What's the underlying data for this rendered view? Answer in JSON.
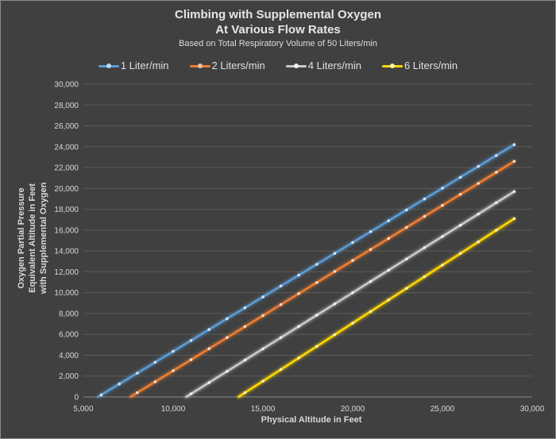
{
  "chart_data": {
    "type": "line",
    "title": "Climbing with Supplemental Oxygen",
    "title_line2": "At Various Flow Rates",
    "subtitle": "Based on Total Respiratory Volume of 50 Liters/min",
    "xlabel": "Physical Altitude in Feet",
    "ylabel_lines": [
      "Oxygen Partial Pressure",
      "Equivalent Altitude  in Feet",
      "with Supplemental Oxygen"
    ],
    "xlim": [
      5000,
      30000
    ],
    "ylim": [
      0,
      30000
    ],
    "x_ticks": [
      "5,000",
      "10,000",
      "15,000",
      "20,000",
      "25,000",
      "30,000"
    ],
    "y_ticks": [
      "0",
      "2,000",
      "4,000",
      "6,000",
      "8,000",
      "10,000",
      "12,000",
      "14,000",
      "16,000",
      "18,000",
      "20,000",
      "22,000",
      "24,000",
      "26,000",
      "28,000",
      "30,000"
    ],
    "grid": true,
    "legend_position": "top",
    "series": [
      {
        "name": "1 Liter/min",
        "color": "#5b9bd5",
        "x_start": 6000,
        "x_end": 29000,
        "x_step": 1000,
        "y_start": 200,
        "y_end": 24200
      },
      {
        "name": "2 Liters/min",
        "color": "#ed7d31",
        "x_start": 8000,
        "x_end": 29000,
        "x_step": 1000,
        "y_start": 400,
        "y_end": 22600
      },
      {
        "name": "4 Liters/min",
        "color": "#c9c9c9",
        "x_start": 11000,
        "x_end": 29000,
        "x_step": 1000,
        "y_start": 300,
        "y_end": 19700
      },
      {
        "name": "6 Liters/min",
        "color": "#ffd600",
        "x_start": 14000,
        "x_end": 29000,
        "x_step": 1000,
        "y_start": 400,
        "y_end": 17100
      }
    ]
  }
}
